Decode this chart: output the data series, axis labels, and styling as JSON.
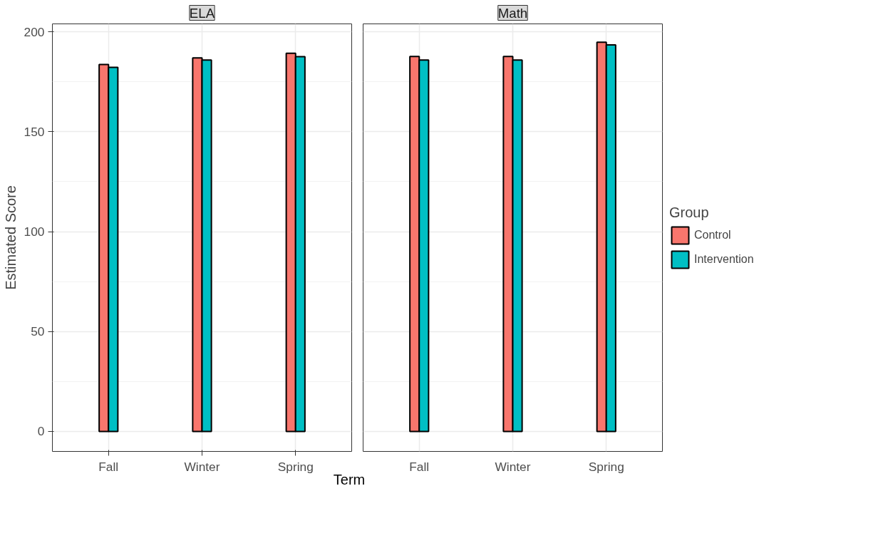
{
  "chart_data": [
    {
      "type": "bar",
      "title": "ELA",
      "legend": "right",
      "ylabel": "Estimated Score",
      "xlabel": "Term",
      "categories": [
        "Fall",
        "Winter",
        "Spring"
      ],
      "ylim": [
        -10,
        204
      ],
      "yticks": [
        0,
        50,
        100,
        150,
        200
      ],
      "grid": true,
      "series": [
        {
          "name": "Control",
          "color": "#f8766d",
          "values": [
            183.7,
            187.0,
            189.3
          ]
        },
        {
          "name": "Intervention",
          "color": "#00bfc4",
          "values": [
            182.2,
            185.9,
            187.6
          ]
        }
      ]
    },
    {
      "type": "bar",
      "title": "Math",
      "legend_title": "Group",
      "legend": "right",
      "tick_labels": "x",
      "categories": [
        "Fall",
        "Winter",
        "Spring"
      ],
      "ylim": [
        -10,
        204
      ],
      "yticks": [
        0,
        50,
        100,
        150,
        200
      ],
      "grid": true,
      "series": [
        {
          "name": "Control",
          "color": "#f8766d",
          "values": [
            187.7,
            187.7,
            194.8
          ]
        },
        {
          "name": "Intervention",
          "color": "#00bfc4",
          "values": [
            185.9,
            185.9,
            193.5
          ]
        }
      ]
    }
  ]
}
